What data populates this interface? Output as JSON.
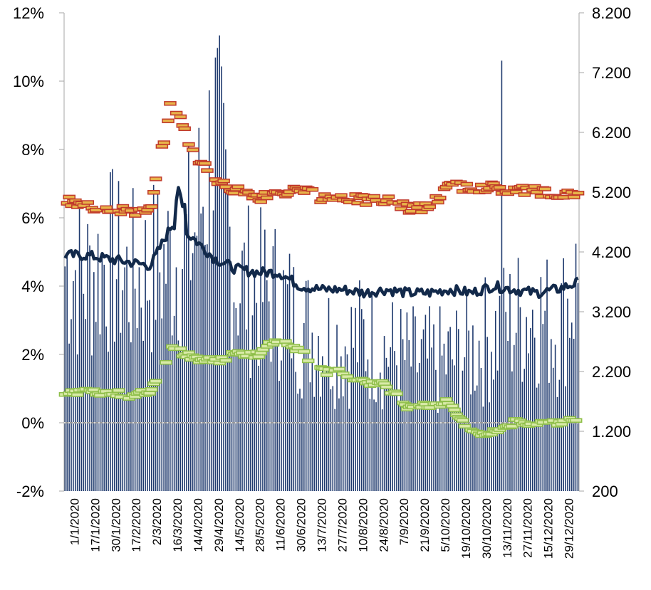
{
  "chart_data": {
    "type": "bar",
    "title": "",
    "xlabel": "",
    "ylabel": "",
    "ylim": [
      -0.02,
      0.12
    ],
    "y2lim": [
      200,
      8200
    ],
    "y_ticks": [
      "-2%",
      "0%",
      "2%",
      "4%",
      "6%",
      "8%",
      "10%",
      "12%"
    ],
    "y_tick_values": [
      -0.02,
      0,
      0.02,
      0.04,
      0.06,
      0.08,
      0.1,
      0.12
    ],
    "y2_ticks": [
      "200",
      "1.200",
      "2.200",
      "3.200",
      "4.200",
      "5.200",
      "6.200",
      "7.200",
      "8.200"
    ],
    "y2_tick_values": [
      200,
      1200,
      2200,
      3200,
      4200,
      5200,
      6200,
      7200,
      8200
    ],
    "x_ticks": [
      "1/1/2020",
      "17/1/2020",
      "30/1/2020",
      "17/2/2020",
      "2/3/2020",
      "16/3/2020",
      "14/4/2020",
      "29/4/2020",
      "14/5/2020",
      "28/5/2020",
      "11/6/2020",
      "30/6/2020",
      "13/7/2020",
      "27/7/2020",
      "10/8/2020",
      "24/8/2020",
      "7/9/2020",
      "21/9/2020",
      "5/10/2020",
      "19/10/2020",
      "30/10/2020",
      "13/11/2020",
      "27/11/2020",
      "15/12/2020",
      "29/12/2020"
    ],
    "colors": {
      "bars": "#1f3a6e",
      "line": "#12294a",
      "red_markers": "#c0392b",
      "red_marker_fill": "#e8b44a",
      "green_markers": "#8fbf4a",
      "green_marker_fill": "#d9eaa8",
      "zero_line": "#999999",
      "dotted": "#dddddd"
    },
    "series": [
      {
        "type": "bar",
        "axis": "right",
        "values_by_tick": [
          4200,
          3950,
          4300,
          3900,
          4100,
          4250,
          4650,
          6500,
          3900,
          3700,
          3600,
          3100,
          2950,
          2800,
          2900,
          2700,
          2500,
          2450,
          2500,
          2700,
          2950,
          3200,
          3400,
          3050,
          3900
        ]
      },
      {
        "type": "line",
        "axis": "left",
        "values_by_tick": [
          0.049,
          0.049,
          0.048,
          0.047,
          0.046,
          0.058,
          0.054,
          0.048,
          0.045,
          0.044,
          0.044,
          0.04,
          0.039,
          0.039,
          0.038,
          0.039,
          0.038,
          0.038,
          0.039,
          0.038,
          0.04,
          0.039,
          0.038,
          0.039,
          0.041
        ]
      },
      {
        "type": "scatter",
        "axis": "left",
        "values_by_tick": [
          0.065,
          0.063,
          0.063,
          0.062,
          0.062,
          0.095,
          0.079,
          0.072,
          0.068,
          0.066,
          0.067,
          0.068,
          0.066,
          0.066,
          0.065,
          0.065,
          0.063,
          0.063,
          0.069,
          0.069,
          0.069,
          0.068,
          0.068,
          0.067,
          0.066
        ]
      },
      {
        "type": "scatter",
        "axis": "left",
        "values_by_tick": [
          0.009,
          0.009,
          0.009,
          0.008,
          0.009,
          0.022,
          0.019,
          0.018,
          0.02,
          0.02,
          0.025,
          0.021,
          0.015,
          0.015,
          0.012,
          0.011,
          0.005,
          0.005,
          0.006,
          -0.003,
          -0.003,
          0.0,
          0.0,
          0.0,
          0.001
        ]
      }
    ]
  }
}
